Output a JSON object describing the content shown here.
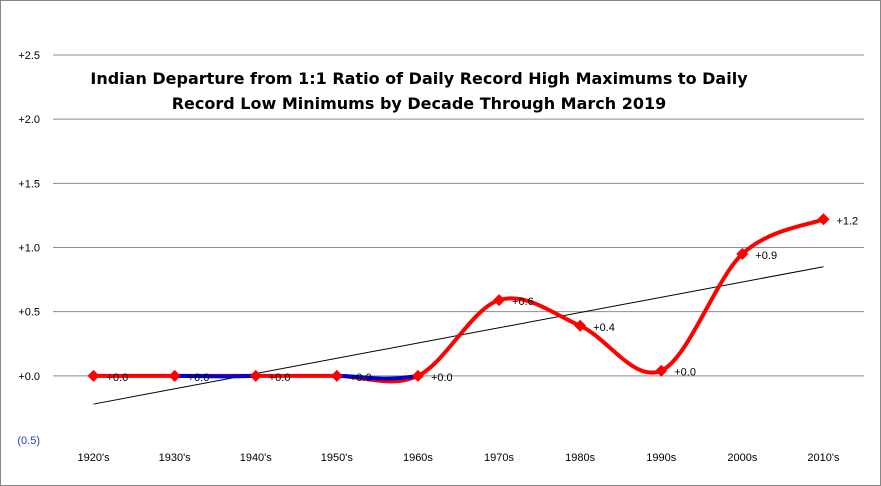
{
  "chart_data": {
    "type": "line",
    "title_lines": [
      "Indian Departure from 1:1 Ratio of Daily Record High Maximums to Daily",
      "Record Low Minimums by Decade Through March 2019"
    ],
    "categories": [
      "1920's",
      "1930's",
      "1940's",
      "1950's",
      "1960s",
      "1970s",
      "1980s",
      "1990s",
      "2000s",
      "2010's"
    ],
    "values": [
      0.0,
      0.0,
      0.0,
      0.0,
      0.0,
      0.59,
      0.39,
      0.04,
      0.95,
      1.22
    ],
    "data_labels": [
      "+0.0",
      "+0.0",
      "+0.0",
      "+0.0",
      "+0.0",
      "+0.6",
      "+0.4",
      "+0.0",
      "+0.9",
      "+1.2"
    ],
    "y_ticks": [
      {
        "value": 2.5,
        "label": "+2.5"
      },
      {
        "value": 2.0,
        "label": "+2.0"
      },
      {
        "value": 1.5,
        "label": "+1.5"
      },
      {
        "value": 1.0,
        "label": "+1.0"
      },
      {
        "value": 0.5,
        "label": "+0.5"
      },
      {
        "value": 0.0,
        "label": "+0.0"
      },
      {
        "value": -0.5,
        "label": "(0.5)"
      }
    ],
    "ylim": [
      -0.5,
      2.5
    ],
    "grid": true,
    "trendline": {
      "start": -0.22,
      "end": 0.85
    },
    "colors": {
      "positive_line": "#ff0000",
      "negative_line": "#0000cc",
      "marker": "#ff0000",
      "trendline": "#000000",
      "grid": "#8c8c8c",
      "negative_tick": "#1f3fbf"
    }
  }
}
